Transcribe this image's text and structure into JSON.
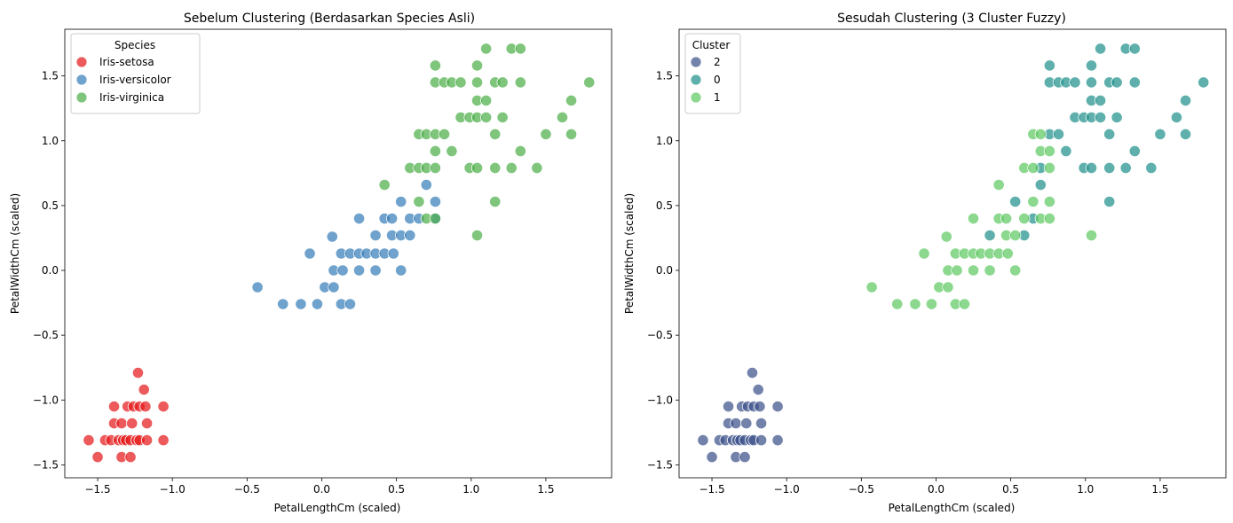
{
  "chart_data": [
    {
      "type": "scatter",
      "title": "Sebelum Clustering (Berdasarkan Species Asli)",
      "xlabel": "PetalLengthCm (scaled)",
      "ylabel": "PetalWidthCm (scaled)",
      "xlim": [
        -1.72,
        1.94
      ],
      "ylim": [
        -1.6,
        1.86
      ],
      "xticks": [
        -1.5,
        -1.0,
        -0.5,
        0.0,
        0.5,
        1.0,
        1.5
      ],
      "yticks": [
        -1.5,
        -1.0,
        -0.5,
        0.0,
        0.5,
        1.0,
        1.5
      ],
      "grid": false,
      "legend": {
        "title": "Species",
        "position": "top-left"
      },
      "series": [
        {
          "name": "Iris-setosa",
          "color": "#e41a1c",
          "points": [
            [
              -1.56,
              -1.31
            ],
            [
              -1.5,
              -1.44
            ],
            [
              -1.45,
              -1.31
            ],
            [
              -1.41,
              -1.31
            ],
            [
              -1.39,
              -1.05
            ],
            [
              -1.39,
              -1.18
            ],
            [
              -1.36,
              -1.31
            ],
            [
              -1.34,
              -1.44
            ],
            [
              -1.34,
              -1.18
            ],
            [
              -1.33,
              -1.31
            ],
            [
              -1.31,
              -1.31
            ],
            [
              -1.3,
              -1.05
            ],
            [
              -1.28,
              -1.44
            ],
            [
              -1.28,
              -1.31
            ],
            [
              -1.27,
              -1.18
            ],
            [
              -1.26,
              -1.05
            ],
            [
              -1.24,
              -1.31
            ],
            [
              -1.23,
              -0.79
            ],
            [
              -1.22,
              -1.05
            ],
            [
              -1.22,
              -1.31
            ],
            [
              -1.19,
              -0.92
            ],
            [
              -1.18,
              -1.05
            ],
            [
              -1.17,
              -1.18
            ],
            [
              -1.17,
              -1.31
            ],
            [
              -1.06,
              -1.05
            ],
            [
              -1.06,
              -1.31
            ]
          ]
        },
        {
          "name": "Iris-versicolor",
          "color": "#377eb8",
          "points": [
            [
              -0.43,
              -0.13
            ],
            [
              -0.26,
              -0.26
            ],
            [
              -0.14,
              -0.26
            ],
            [
              -0.08,
              0.13
            ],
            [
              -0.03,
              -0.26
            ],
            [
              0.02,
              -0.13
            ],
            [
              0.07,
              0.26
            ],
            [
              0.08,
              0.0
            ],
            [
              0.08,
              -0.13
            ],
            [
              0.13,
              0.13
            ],
            [
              0.13,
              -0.26
            ],
            [
              0.14,
              0.0
            ],
            [
              0.19,
              0.13
            ],
            [
              0.19,
              -0.26
            ],
            [
              0.25,
              0.13
            ],
            [
              0.25,
              0.4
            ],
            [
              0.25,
              0.0
            ],
            [
              0.3,
              0.13
            ],
            [
              0.36,
              0.13
            ],
            [
              0.36,
              0.27
            ],
            [
              0.36,
              0.0
            ],
            [
              0.42,
              0.4
            ],
            [
              0.42,
              0.13
            ],
            [
              0.47,
              0.27
            ],
            [
              0.47,
              0.4
            ],
            [
              0.48,
              0.13
            ],
            [
              0.53,
              0.27
            ],
            [
              0.53,
              0.53
            ],
            [
              0.53,
              0.0
            ],
            [
              0.59,
              0.27
            ],
            [
              0.59,
              0.4
            ],
            [
              0.65,
              0.4
            ],
            [
              0.7,
              0.66
            ],
            [
              0.76,
              0.53
            ],
            [
              0.76,
              0.4
            ]
          ]
        },
        {
          "name": "Iris-virginica",
          "color": "#4daf4a",
          "points": [
            [
              0.42,
              0.66
            ],
            [
              0.59,
              0.79
            ],
            [
              0.65,
              1.05
            ],
            [
              0.65,
              0.79
            ],
            [
              0.65,
              0.53
            ],
            [
              0.7,
              0.79
            ],
            [
              0.7,
              1.05
            ],
            [
              0.7,
              0.4
            ],
            [
              0.76,
              1.58
            ],
            [
              0.76,
              1.45
            ],
            [
              0.76,
              1.05
            ],
            [
              0.76,
              0.92
            ],
            [
              0.76,
              0.79
            ],
            [
              0.76,
              0.4
            ],
            [
              0.82,
              1.45
            ],
            [
              0.82,
              1.05
            ],
            [
              0.87,
              1.45
            ],
            [
              0.87,
              0.92
            ],
            [
              0.93,
              1.45
            ],
            [
              0.93,
              1.18
            ],
            [
              0.99,
              1.18
            ],
            [
              0.99,
              0.79
            ],
            [
              1.04,
              1.58
            ],
            [
              1.04,
              1.45
            ],
            [
              1.04,
              1.31
            ],
            [
              1.04,
              1.18
            ],
            [
              1.04,
              0.79
            ],
            [
              1.04,
              0.27
            ],
            [
              1.1,
              1.71
            ],
            [
              1.1,
              1.31
            ],
            [
              1.1,
              1.18
            ],
            [
              1.16,
              1.45
            ],
            [
              1.16,
              1.05
            ],
            [
              1.16,
              0.79
            ],
            [
              1.16,
              0.53
            ],
            [
              1.21,
              1.18
            ],
            [
              1.21,
              1.45
            ],
            [
              1.27,
              1.71
            ],
            [
              1.27,
              0.79
            ],
            [
              1.33,
              1.71
            ],
            [
              1.33,
              1.45
            ],
            [
              1.33,
              0.92
            ],
            [
              1.44,
              0.79
            ],
            [
              1.5,
              1.05
            ],
            [
              1.61,
              1.18
            ],
            [
              1.67,
              1.31
            ],
            [
              1.67,
              1.05
            ],
            [
              1.79,
              1.45
            ]
          ]
        }
      ]
    },
    {
      "type": "scatter",
      "title": "Sesudah Clustering (3 Cluster Fuzzy)",
      "xlabel": "PetalLengthCm (scaled)",
      "ylabel": "PetalWidthCm (scaled)",
      "xlim": [
        -1.72,
        1.94
      ],
      "ylim": [
        -1.6,
        1.86
      ],
      "xticks": [
        -1.5,
        -1.0,
        -0.5,
        0.0,
        0.5,
        1.0,
        1.5
      ],
      "yticks": [
        -1.5,
        -1.0,
        -0.5,
        0.0,
        0.5,
        1.0,
        1.5
      ],
      "grid": false,
      "legend": {
        "title": "Cluster",
        "position": "top-left"
      },
      "series": [
        {
          "name": "2",
          "color": "#3b528b",
          "points": [
            [
              -1.56,
              -1.31
            ],
            [
              -1.5,
              -1.44
            ],
            [
              -1.45,
              -1.31
            ],
            [
              -1.41,
              -1.31
            ],
            [
              -1.39,
              -1.05
            ],
            [
              -1.39,
              -1.18
            ],
            [
              -1.36,
              -1.31
            ],
            [
              -1.34,
              -1.44
            ],
            [
              -1.34,
              -1.18
            ],
            [
              -1.33,
              -1.31
            ],
            [
              -1.31,
              -1.31
            ],
            [
              -1.3,
              -1.05
            ],
            [
              -1.28,
              -1.44
            ],
            [
              -1.28,
              -1.31
            ],
            [
              -1.27,
              -1.18
            ],
            [
              -1.26,
              -1.05
            ],
            [
              -1.24,
              -1.31
            ],
            [
              -1.23,
              -0.79
            ],
            [
              -1.22,
              -1.05
            ],
            [
              -1.22,
              -1.31
            ],
            [
              -1.19,
              -0.92
            ],
            [
              -1.18,
              -1.05
            ],
            [
              -1.17,
              -1.18
            ],
            [
              -1.17,
              -1.31
            ],
            [
              -1.06,
              -1.05
            ],
            [
              -1.06,
              -1.31
            ]
          ]
        },
        {
          "name": "0",
          "color": "#21918c",
          "points": [
            [
              0.36,
              0.27
            ],
            [
              0.53,
              0.53
            ],
            [
              0.59,
              0.27
            ],
            [
              0.65,
              0.4
            ],
            [
              0.7,
              0.66
            ],
            [
              0.7,
              0.79
            ],
            [
              0.76,
              1.58
            ],
            [
              0.76,
              1.45
            ],
            [
              0.76,
              1.05
            ],
            [
              0.82,
              1.45
            ],
            [
              0.82,
              1.05
            ],
            [
              0.87,
              1.45
            ],
            [
              0.87,
              0.92
            ],
            [
              0.93,
              1.45
            ],
            [
              0.93,
              1.18
            ],
            [
              0.99,
              1.18
            ],
            [
              0.99,
              0.79
            ],
            [
              1.04,
              1.58
            ],
            [
              1.04,
              1.45
            ],
            [
              1.04,
              1.31
            ],
            [
              1.04,
              1.18
            ],
            [
              1.04,
              0.79
            ],
            [
              1.1,
              1.71
            ],
            [
              1.1,
              1.31
            ],
            [
              1.1,
              1.18
            ],
            [
              1.16,
              1.45
            ],
            [
              1.16,
              1.05
            ],
            [
              1.16,
              0.79
            ],
            [
              1.16,
              0.53
            ],
            [
              1.21,
              1.18
            ],
            [
              1.21,
              1.45
            ],
            [
              1.27,
              1.71
            ],
            [
              1.27,
              0.79
            ],
            [
              1.33,
              1.71
            ],
            [
              1.33,
              1.45
            ],
            [
              1.33,
              0.92
            ],
            [
              1.44,
              0.79
            ],
            [
              1.5,
              1.05
            ],
            [
              1.61,
              1.18
            ],
            [
              1.67,
              1.31
            ],
            [
              1.67,
              1.05
            ],
            [
              1.79,
              1.45
            ]
          ]
        },
        {
          "name": "1",
          "color": "#5ec962",
          "points": [
            [
              -0.43,
              -0.13
            ],
            [
              -0.26,
              -0.26
            ],
            [
              -0.14,
              -0.26
            ],
            [
              -0.08,
              0.13
            ],
            [
              -0.03,
              -0.26
            ],
            [
              0.02,
              -0.13
            ],
            [
              0.07,
              0.26
            ],
            [
              0.08,
              0.0
            ],
            [
              0.08,
              -0.13
            ],
            [
              0.13,
              0.13
            ],
            [
              0.13,
              -0.26
            ],
            [
              0.14,
              0.0
            ],
            [
              0.19,
              0.13
            ],
            [
              0.19,
              -0.26
            ],
            [
              0.25,
              0.13
            ],
            [
              0.25,
              0.4
            ],
            [
              0.25,
              0.0
            ],
            [
              0.3,
              0.13
            ],
            [
              0.36,
              0.13
            ],
            [
              0.36,
              0.0
            ],
            [
              0.42,
              0.4
            ],
            [
              0.42,
              0.13
            ],
            [
              0.42,
              0.66
            ],
            [
              0.47,
              0.27
            ],
            [
              0.47,
              0.4
            ],
            [
              0.48,
              0.13
            ],
            [
              0.53,
              0.27
            ],
            [
              0.53,
              0.0
            ],
            [
              0.59,
              0.4
            ],
            [
              0.59,
              0.79
            ],
            [
              0.65,
              1.05
            ],
            [
              0.65,
              0.79
            ],
            [
              0.65,
              0.53
            ],
            [
              0.7,
              0.4
            ],
            [
              0.7,
              1.05
            ],
            [
              0.7,
              0.92
            ],
            [
              0.76,
              0.92
            ],
            [
              0.76,
              0.79
            ],
            [
              0.76,
              0.53
            ],
            [
              0.76,
              0.4
            ],
            [
              1.04,
              0.27
            ]
          ]
        }
      ]
    }
  ]
}
